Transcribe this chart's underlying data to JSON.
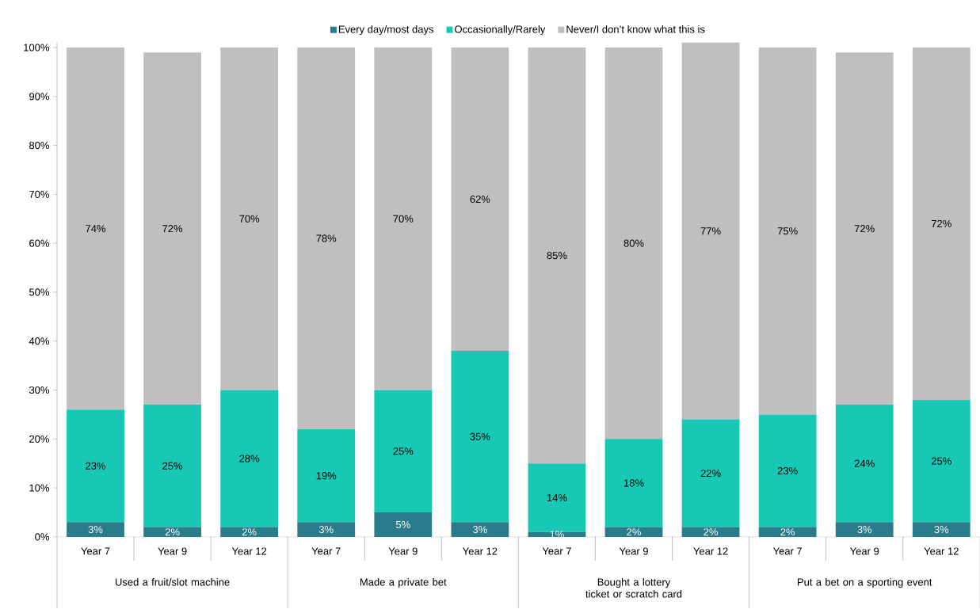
{
  "chart_data": {
    "type": "bar",
    "stacked": true,
    "legend": "top",
    "categories": [
      "Year 7",
      "Year 9",
      "Year 12",
      "Year 7",
      "Year 9",
      "Year 12",
      "Year 7",
      "Year 9",
      "Year 12",
      "Year 7",
      "Year 9",
      "Year 12"
    ],
    "series": [
      {
        "name": "Every day/most days",
        "color": "#2a7b8c",
        "values": [
          3,
          2,
          2,
          3,
          5,
          3,
          1,
          2,
          2,
          2,
          3,
          3
        ],
        "value_labels": [
          "3%",
          "2%",
          "2%",
          "3%",
          "5%",
          "3%",
          "1%",
          "2%",
          "2%",
          "2%",
          "3%",
          "3%"
        ]
      },
      {
        "name": "Occasionally/Rarely",
        "color": "#17c9b5",
        "values": [
          23,
          25,
          28,
          19,
          25,
          35,
          14,
          18,
          22,
          23,
          24,
          25
        ],
        "value_labels": [
          "23%",
          "25%",
          "28%",
          "19%",
          "25%",
          "35%",
          "14%",
          "18%",
          "22%",
          "23%",
          "24%",
          "25%"
        ]
      },
      {
        "name": "Never/I don’t know what this is",
        "color": "#bfbfbf",
        "values": [
          74,
          72,
          70,
          78,
          70,
          62,
          85,
          80,
          77,
          75,
          72,
          72
        ],
        "value_labels": [
          "74%",
          "72%",
          "70%",
          "78%",
          "70%",
          "62%",
          "85%",
          "80%",
          "77%",
          "75%",
          "72%",
          "72%"
        ]
      }
    ],
    "ylim": [
      0,
      101
    ],
    "yticks": [
      {
        "value": 0,
        "label": "0%"
      },
      {
        "value": 10,
        "label": "10%"
      },
      {
        "value": 20,
        "label": "20%"
      },
      {
        "value": 30,
        "label": "30%"
      },
      {
        "value": 40,
        "label": "40%"
      },
      {
        "value": 50,
        "label": "50%"
      },
      {
        "value": 60,
        "label": "60%"
      },
      {
        "value": 70,
        "label": "70%"
      },
      {
        "value": 80,
        "label": "80%"
      },
      {
        "value": 90,
        "label": "90%"
      },
      {
        "value": 100,
        "label": "100%"
      }
    ],
    "annotations": [
      "Used a fruit/slot machine",
      "Made a private bet",
      "Bought a lottery ticket or scratch card",
      "Put a bet on a sporting event"
    ]
  }
}
